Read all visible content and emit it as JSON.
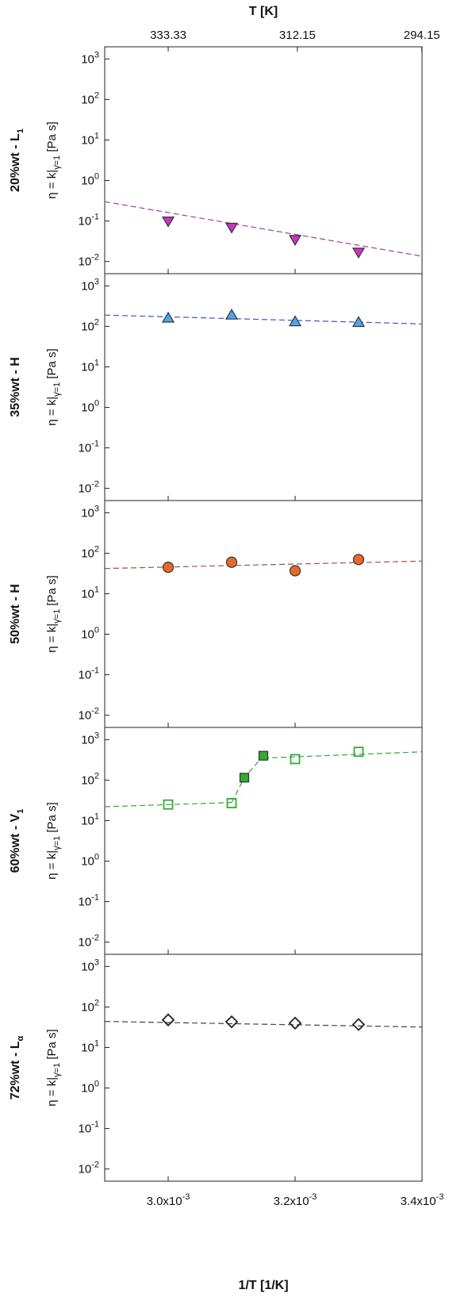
{
  "chart_data": {
    "type": "scatter",
    "top_axis": {
      "title": "T [K]",
      "ticks": [
        "333.33",
        "312.15",
        "294.15"
      ]
    },
    "xlabel": "1/T [1/K]",
    "xlim": [
      0.0029,
      0.0034
    ],
    "x_ticks": [
      0.003,
      0.0032,
      0.0034
    ],
    "x_tick_labels": [
      {
        "mantissa": "3.0x10",
        "exp": "-3"
      },
      {
        "mantissa": "3.2x10",
        "exp": "-3"
      },
      {
        "mantissa": "3.4x10",
        "exp": "-3"
      }
    ],
    "y_scale": "log",
    "ylim": [
      0.005,
      2000
    ],
    "y_ticks": [
      {
        "base": "10",
        "exp": "-2"
      },
      {
        "base": "10",
        "exp": "-1"
      },
      {
        "base": "10",
        "exp": "0"
      },
      {
        "base": "10",
        "exp": "1"
      },
      {
        "base": "10",
        "exp": "2"
      },
      {
        "base": "10",
        "exp": "3"
      }
    ],
    "ylabel": {
      "prefix": "η = k|",
      "subscript": "γ̇=1",
      "suffix": " [Pa s]"
    },
    "panels": [
      {
        "label": {
          "main": "20%wt - L",
          "sub": "1"
        },
        "color": "#cc33cc",
        "line_color": "#a040a0",
        "marker": "triangle-down",
        "filled": true,
        "x": [
          0.003,
          0.0031,
          0.0032,
          0.0033
        ],
        "y": [
          0.1,
          0.07,
          0.035,
          0.017
        ],
        "fit_segments": [
          {
            "x": [
              0.0029,
              0.0034
            ],
            "y": [
              0.3,
              0.0135
            ]
          }
        ]
      },
      {
        "label": {
          "main": "35%wt - H",
          "sub": ""
        },
        "color": "#4aa8f0",
        "line_color": "#3a55d0",
        "marker": "triangle-up",
        "filled": true,
        "x": [
          0.003,
          0.0031,
          0.0032,
          0.0033
        ],
        "y": [
          160,
          190,
          130,
          125
        ],
        "fit_segments": [
          {
            "x": [
              0.0029,
              0.0034
            ],
            "y": [
              190,
              115
            ]
          }
        ]
      },
      {
        "label": {
          "main": "50%wt - H",
          "sub": ""
        },
        "color": "#e86a2a",
        "line_color": "#a05050",
        "marker": "circle",
        "filled": true,
        "x": [
          0.003,
          0.0031,
          0.0032,
          0.0033
        ],
        "y": [
          45,
          60,
          37,
          70
        ],
        "fit_segments": [
          {
            "x": [
              0.0029,
              0.0034
            ],
            "y": [
              42,
              64
            ]
          }
        ]
      },
      {
        "label": {
          "main": "60%wt - V",
          "sub": "1"
        },
        "color": "#33aa33",
        "line_color": "#33aa33",
        "marker": "square",
        "filled": false,
        "x": [
          0.003,
          0.0031,
          0.0032,
          0.0033
        ],
        "y": [
          25,
          27,
          330,
          500
        ],
        "filled_points": {
          "x": [
            0.00312,
            0.00315
          ],
          "y": [
            115,
            400
          ]
        },
        "fit_segments": [
          {
            "x": [
              0.0029,
              0.0031
            ],
            "y": [
              22,
              28
            ]
          },
          {
            "x": [
              0.0031,
              0.00312,
              0.00315
            ],
            "y": [
              28,
              115,
              400
            ]
          },
          {
            "x": [
              0.00315,
              0.0034
            ],
            "y": [
              350,
              500
            ]
          }
        ]
      },
      {
        "label": {
          "main": "72%wt - L",
          "sub": "α"
        },
        "color": "#222222",
        "line_color": "#444444",
        "marker": "diamond",
        "filled": false,
        "x": [
          0.003,
          0.0031,
          0.0032,
          0.0033
        ],
        "y": [
          48,
          43,
          40,
          37
        ],
        "fit_segments": [
          {
            "x": [
              0.0029,
              0.0034
            ],
            "y": [
              44,
              32
            ]
          }
        ]
      }
    ],
    "grid": false,
    "legend": "none"
  }
}
